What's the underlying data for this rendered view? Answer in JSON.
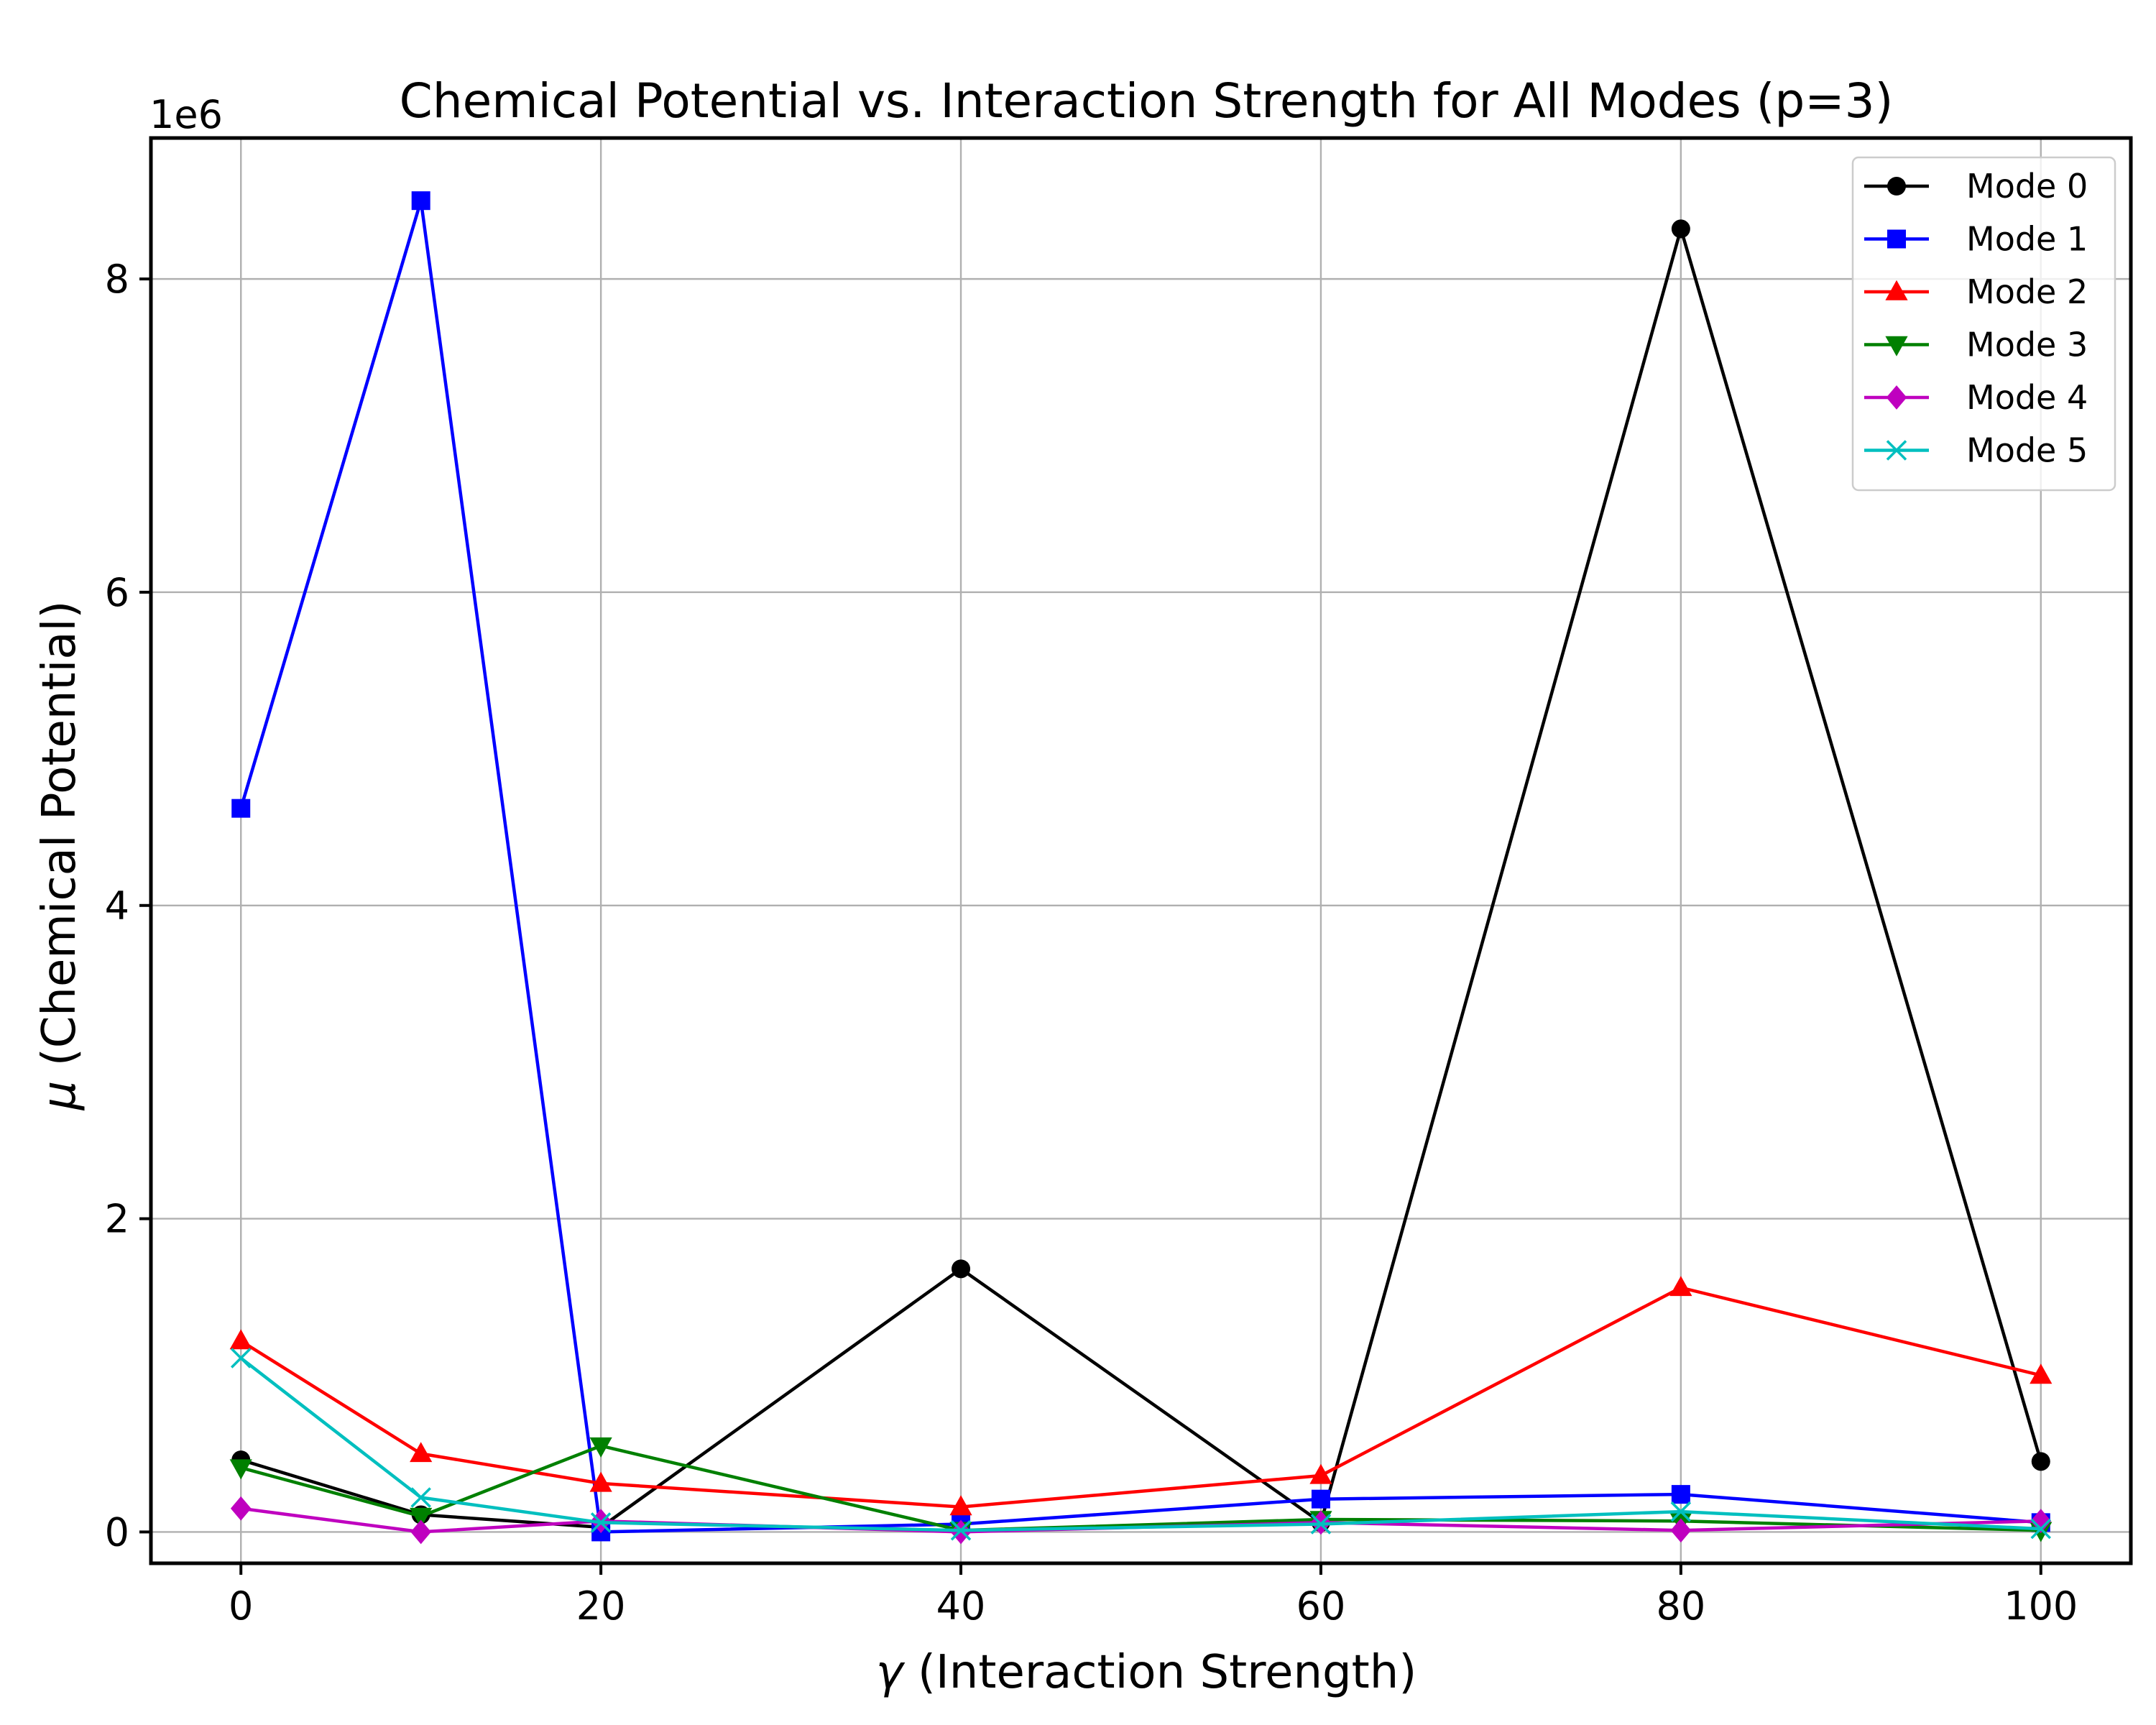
{
  "chart_data": {
    "type": "line",
    "title": "Chemical Potential vs. Interaction Strength for All Modes (p=3)",
    "xlabel_symbol": "γ",
    "xlabel_text": " (Interaction Strength)",
    "ylabel_symbol": "μ",
    "ylabel_text": " (Chemical Potential)",
    "y_offset_label": "1e6",
    "x": [
      0,
      10,
      20,
      40,
      60,
      80,
      100
    ],
    "xlim": [
      -5,
      105
    ],
    "ylim": [
      -0.2,
      8.9
    ],
    "y_scale": 1000000,
    "xticks": [
      0,
      20,
      40,
      60,
      80,
      100
    ],
    "yticks": [
      0,
      2,
      4,
      6,
      8
    ],
    "grid": true,
    "legend_position": "top-right",
    "series": [
      {
        "name": "Mode 0",
        "color": "#000000",
        "marker": "circle",
        "values": [
          0.46,
          0.11,
          0.03,
          1.68,
          0.06,
          8.32,
          0.45
        ]
      },
      {
        "name": "Mode 1",
        "color": "#0000ff",
        "marker": "square",
        "values": [
          4.62,
          8.5,
          0.0,
          0.05,
          0.21,
          0.24,
          0.06
        ]
      },
      {
        "name": "Mode 2",
        "color": "#ff0000",
        "marker": "triangle-up",
        "values": [
          1.22,
          0.5,
          0.31,
          0.16,
          0.36,
          1.56,
          1.0
        ]
      },
      {
        "name": "Mode 3",
        "color": "#008000",
        "marker": "triangle-down",
        "values": [
          0.41,
          0.1,
          0.55,
          0.01,
          0.08,
          0.07,
          0.01
        ]
      },
      {
        "name": "Mode 4",
        "color": "#bf00bf",
        "marker": "diamond",
        "values": [
          0.15,
          0.0,
          0.07,
          0.0,
          0.06,
          0.01,
          0.07
        ]
      },
      {
        "name": "Mode 5",
        "color": "#00bfbf",
        "marker": "x",
        "values": [
          1.11,
          0.22,
          0.06,
          0.01,
          0.05,
          0.13,
          0.02
        ]
      }
    ]
  }
}
